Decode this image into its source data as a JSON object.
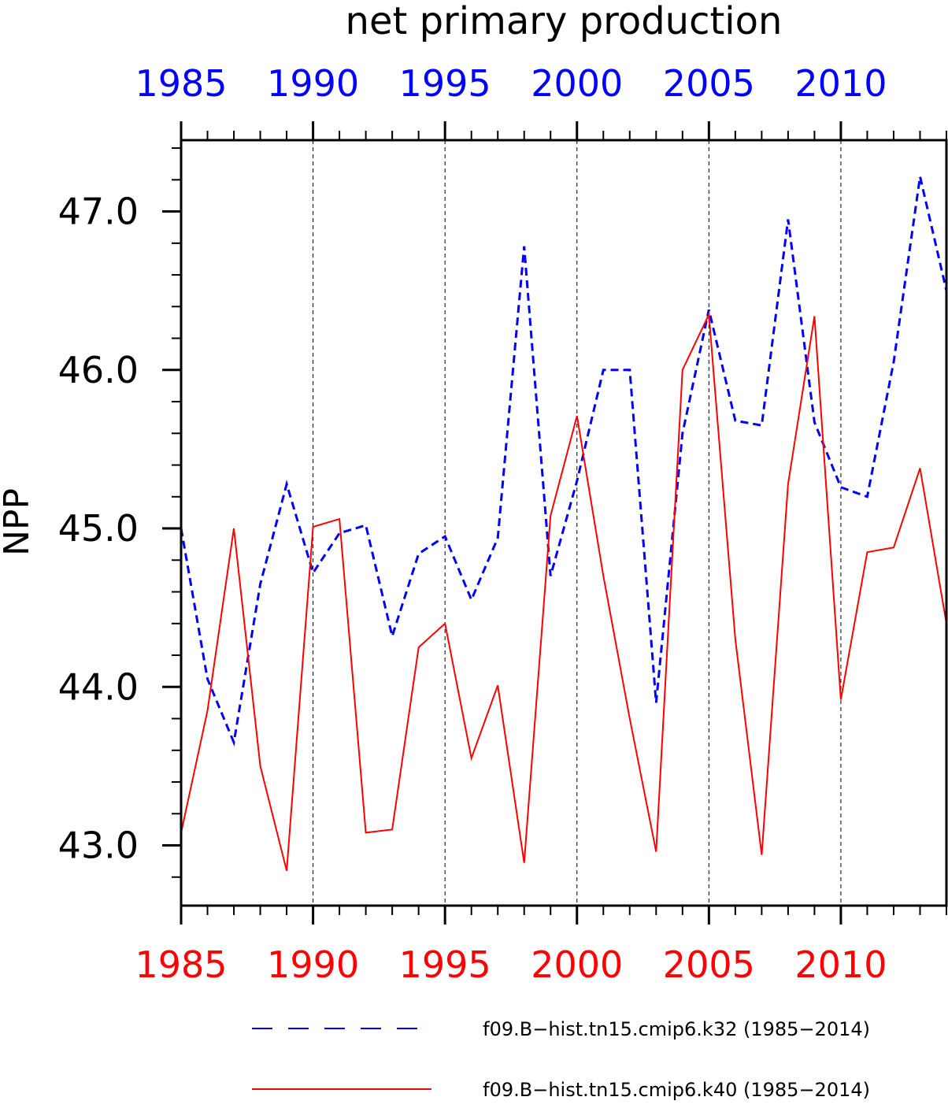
{
  "chart_data": {
    "type": "line",
    "title": "net primary production",
    "ylabel": "NPP",
    "x_range": [
      1985,
      2014
    ],
    "ylim": [
      42.62,
      47.45
    ],
    "x_ticks_major": [
      1985,
      1990,
      1995,
      2000,
      2005,
      2010
    ],
    "y_ticks_major": [
      43.0,
      44.0,
      45.0,
      46.0,
      47.0
    ],
    "y_tick_labels": [
      "43.0",
      "44.0",
      "45.0",
      "46.0",
      "47.0"
    ],
    "top_axis_color": "#0000ff",
    "bottom_axis_color": "#ff0000",
    "grid": "vertical dashed lines at major x ticks",
    "legend_placement": "bottom",
    "x": [
      1985,
      1986,
      1987,
      1988,
      1989,
      1990,
      1991,
      1992,
      1993,
      1994,
      1995,
      1996,
      1997,
      1998,
      1999,
      2000,
      2001,
      2002,
      2003,
      2004,
      2005,
      2006,
      2007,
      2008,
      2009,
      2010,
      2011,
      2012,
      2013,
      2014
    ],
    "series": [
      {
        "name": "f09.B−hist.tn15.cmip6.k32 (1985−2014)",
        "color": "#0000ff",
        "dash": "dashed",
        "values": [
          45.0,
          44.05,
          43.65,
          44.65,
          45.28,
          44.72,
          44.97,
          45.02,
          44.32,
          44.84,
          44.95,
          44.55,
          44.94,
          46.78,
          44.7,
          45.3,
          46.0,
          46.0,
          43.9,
          45.6,
          46.38,
          45.68,
          45.65,
          46.95,
          45.67,
          45.26,
          45.2,
          46.05,
          47.22,
          46.5
        ]
      },
      {
        "name": "f09.B−hist.tn15.cmip6.k40 (1985−2014)",
        "color": "#ff0000",
        "dash": "solid",
        "values": [
          43.08,
          43.85,
          45.0,
          43.5,
          42.84,
          45.01,
          45.06,
          43.08,
          43.1,
          44.25,
          44.4,
          43.55,
          44.01,
          42.89,
          45.08,
          45.71,
          44.7,
          43.8,
          42.96,
          46.0,
          46.35,
          44.3,
          42.94,
          45.28,
          46.34,
          43.92,
          44.85,
          44.88,
          45.38,
          44.4
        ]
      }
    ]
  }
}
